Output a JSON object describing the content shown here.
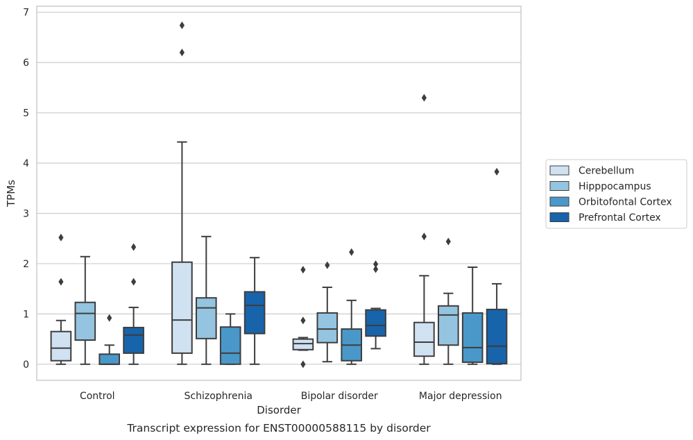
{
  "chart_data": {
    "type": "boxplot",
    "title": "",
    "caption": "Transcript expression for ENST00000588115 by disorder",
    "xlabel": "Disorder",
    "ylabel": "TPMs",
    "ylim": [
      -0.32,
      7.12
    ],
    "yticks": [
      0,
      1,
      2,
      3,
      4,
      5,
      6,
      7
    ],
    "grid": "horizontal",
    "legend": {
      "placement": "right",
      "entries": [
        "Cerebellum",
        "Hipppocampus",
        "Orbitofontal Cortex",
        "Prefrontal Cortex"
      ]
    },
    "categories": [
      "Control",
      "Schizophrenia",
      "Bipolar disorder",
      "Major depression"
    ],
    "series": [
      {
        "name": "Cerebellum",
        "color": "#d0e1f2",
        "boxes": [
          {
            "whislo": 0.0,
            "q1": 0.07,
            "med": 0.32,
            "q3": 0.65,
            "whishi": 0.87,
            "fliers": [
              1.64,
              2.52
            ]
          },
          {
            "whislo": 0.0,
            "q1": 0.22,
            "med": 0.88,
            "q3": 2.03,
            "whishi": 4.42,
            "fliers": [
              6.2,
              6.74
            ]
          },
          {
            "whislo": 0.28,
            "q1": 0.29,
            "med": 0.41,
            "q3": 0.5,
            "whishi": 0.53,
            "fliers": [
              0.0,
              0.87,
              1.88
            ]
          },
          {
            "whislo": 0.0,
            "q1": 0.16,
            "med": 0.44,
            "q3": 0.83,
            "whishi": 1.76,
            "fliers": [
              2.54,
              5.3
            ]
          }
        ]
      },
      {
        "name": "Hipppocampus",
        "color": "#94c4df",
        "boxes": [
          {
            "whislo": 0.0,
            "q1": 0.48,
            "med": 1.01,
            "q3": 1.23,
            "whishi": 2.14,
            "fliers": []
          },
          {
            "whislo": 0.0,
            "q1": 0.51,
            "med": 1.12,
            "q3": 1.32,
            "whishi": 2.54,
            "fliers": []
          },
          {
            "whislo": 0.05,
            "q1": 0.43,
            "med": 0.7,
            "q3": 1.02,
            "whishi": 1.53,
            "fliers": [
              1.97
            ]
          },
          {
            "whislo": 0.0,
            "q1": 0.38,
            "med": 0.98,
            "q3": 1.16,
            "whishi": 1.41,
            "fliers": [
              2.44
            ]
          }
        ]
      },
      {
        "name": "Orbitofontal Cortex",
        "color": "#4a98c9",
        "boxes": [
          {
            "whislo": 0.0,
            "q1": 0.0,
            "med": 0.0,
            "q3": 0.2,
            "whishi": 0.38,
            "fliers": [
              0.92
            ]
          },
          {
            "whislo": 0.0,
            "q1": 0.0,
            "med": 0.22,
            "q3": 0.74,
            "whishi": 1.0,
            "fliers": []
          },
          {
            "whislo": 0.0,
            "q1": 0.07,
            "med": 0.38,
            "q3": 0.7,
            "whishi": 1.27,
            "fliers": [
              2.23
            ]
          },
          {
            "whislo": 0.0,
            "q1": 0.04,
            "med": 0.33,
            "q3": 1.02,
            "whishi": 1.93,
            "fliers": []
          }
        ]
      },
      {
        "name": "Prefrontal Cortex",
        "color": "#1764ab",
        "boxes": [
          {
            "whislo": 0.0,
            "q1": 0.22,
            "med": 0.58,
            "q3": 0.73,
            "whishi": 1.13,
            "fliers": [
              1.64,
              2.33
            ]
          },
          {
            "whislo": 0.0,
            "q1": 0.61,
            "med": 1.17,
            "q3": 1.44,
            "whishi": 2.12,
            "fliers": []
          },
          {
            "whislo": 0.31,
            "q1": 0.56,
            "med": 0.77,
            "q3": 1.08,
            "whishi": 1.11,
            "fliers": [
              1.89,
              1.99
            ]
          },
          {
            "whislo": 0.0,
            "q1": 0.01,
            "med": 0.36,
            "q3": 1.09,
            "whishi": 1.6,
            "fliers": [
              3.83
            ]
          }
        ]
      }
    ]
  }
}
